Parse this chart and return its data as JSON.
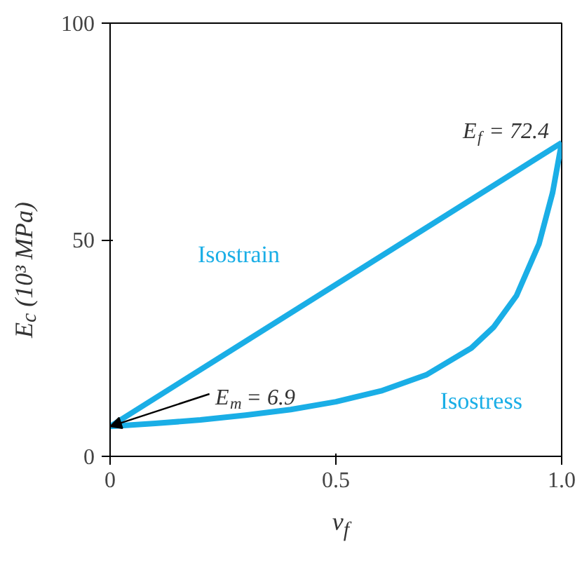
{
  "chart_data": {
    "type": "line",
    "xlabel": "ν$_{f}$",
    "ylabel": "E$_{c}$ (10³ MPa)",
    "xlim": [
      0,
      1.0
    ],
    "ylim": [
      0,
      100
    ],
    "xticks": [
      0,
      0.5,
      {
        "value": 1.0,
        "label": "1.0"
      }
    ],
    "yticks": [
      0,
      50,
      100
    ],
    "grid": false,
    "legend": false,
    "marker": "none",
    "line_style": "solid",
    "series": [
      {
        "name": "Isostrain",
        "color": "#1aaee6",
        "x": [
          0,
          1.0
        ],
        "values": [
          6.9,
          72.4
        ]
      },
      {
        "name": "Isostress",
        "color": "#1aaee6",
        "x": [
          0,
          0.1,
          0.2,
          0.3,
          0.4,
          0.5,
          0.6,
          0.7,
          0.8,
          0.85,
          0.9,
          0.95,
          0.98,
          1.0
        ],
        "values": [
          6.9,
          7.6,
          8.4,
          9.5,
          10.8,
          12.6,
          15.1,
          18.8,
          25,
          29.9,
          37.1,
          49.1,
          60.9,
          72.4
        ]
      }
    ],
    "annotations": [
      {
        "text": "E$_{f}$ = 72.4",
        "x": 1.0,
        "y": 72.4
      },
      {
        "text": "E$_{m}$ = 6.9",
        "x": 0,
        "y": 6.9
      }
    ]
  }
}
